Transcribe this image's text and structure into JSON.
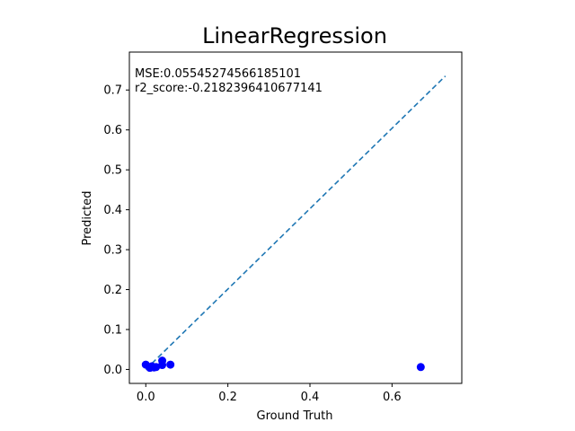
{
  "chart_data": {
    "type": "scatter",
    "title": "LinearRegression",
    "xlabel": "Ground Truth",
    "ylabel": "Predicted",
    "xlim": [
      -0.04,
      0.77
    ],
    "ylim": [
      -0.035,
      0.795
    ],
    "xticks": [
      0.0,
      0.2,
      0.4,
      0.6
    ],
    "xtick_labels": [
      "0.0",
      "0.2",
      "0.4",
      "0.6"
    ],
    "yticks": [
      0.0,
      0.1,
      0.2,
      0.3,
      0.4,
      0.5,
      0.6,
      0.7
    ],
    "ytick_labels": [
      "0.0",
      "0.1",
      "0.2",
      "0.3",
      "0.4",
      "0.5",
      "0.6",
      "0.7"
    ],
    "grid": false,
    "points": {
      "x": [
        0.0,
        0.01,
        0.015,
        0.02,
        0.025,
        0.04,
        0.04,
        0.06,
        0.67
      ],
      "y": [
        0.012,
        0.004,
        0.008,
        0.005,
        0.006,
        0.022,
        0.011,
        0.012,
        0.006
      ],
      "color": "#0000ff"
    },
    "reference_line": {
      "x": [
        0.0,
        0.73
      ],
      "y": [
        0.0,
        0.735
      ],
      "style": "dashed",
      "color": "#1f77b4"
    },
    "annotations": [
      "MSE:0.05545274566185101",
      "r2_score:-0.2182396410677141"
    ]
  }
}
